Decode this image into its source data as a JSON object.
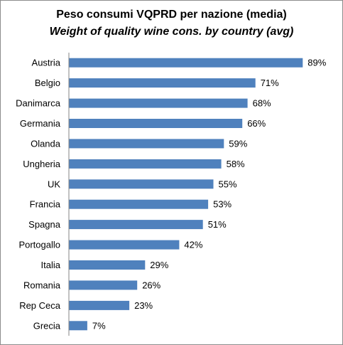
{
  "chart_data": {
    "type": "bar",
    "orientation": "horizontal",
    "title": "Peso  consumi VQPRD per nazione (media)",
    "subtitle": "Weight of quality wine cons. by country (avg)",
    "categories": [
      "Austria",
      "Belgio",
      "Danimarca",
      "Germania",
      "Olanda",
      "Ungheria",
      "UK",
      "Francia",
      "Spagna",
      "Portogallo",
      "Italia",
      "Romania",
      "Rep Ceca",
      "Grecia"
    ],
    "values": [
      89,
      71,
      68,
      66,
      59,
      58,
      55,
      53,
      51,
      42,
      29,
      26,
      23,
      7
    ],
    "data_labels": [
      "89%",
      "71%",
      "68%",
      "66%",
      "59%",
      "58%",
      "55%",
      "53%",
      "51%",
      "42%",
      "29%",
      "26%",
      "23%",
      "7%"
    ],
    "value_unit": "%",
    "xlim": [
      0,
      100
    ],
    "grid": false,
    "legend": "none",
    "colors": {
      "bar": "#4f81bd",
      "axis": "#868686"
    }
  }
}
